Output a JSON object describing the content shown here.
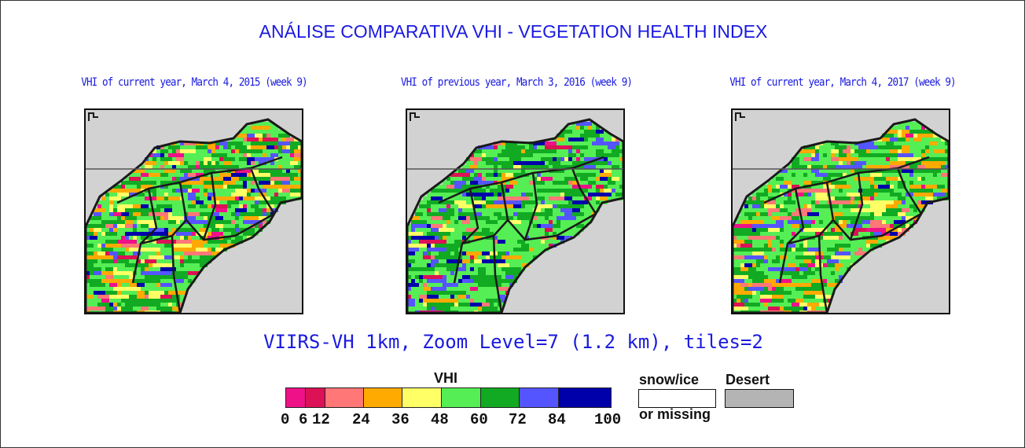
{
  "title": "ANÁLISE COMPARATIVA VHI - VEGETATION HEALTH INDEX",
  "maps": [
    {
      "caption": "VHI of current year, March 4, 2015 (week 9)",
      "icon": "vhi-map-2015"
    },
    {
      "caption": "VHI of previous year, March 3, 2016 (week 9)",
      "icon": "vhi-map-2016"
    },
    {
      "caption": "VHI of current year, March 4, 2017 (week 9)",
      "icon": "vhi-map-2017"
    }
  ],
  "subtitle": "VIIRS-VH 1km, Zoom Level=7 (1.2 km), tiles=2",
  "legend": {
    "title": "VHI",
    "ticks": [
      "0",
      "6",
      "12",
      "24",
      "36",
      "48",
      "60",
      "72",
      "84",
      "100"
    ],
    "colors": [
      "#ee1188",
      "#dd1155",
      "#ff7777",
      "#ffaa00",
      "#ffff66",
      "#55ee55",
      "#11aa22",
      "#5555ff",
      "#0000aa"
    ],
    "snow_label": "snow/ice",
    "missing_label": "or missing",
    "desert_label": "Desert",
    "snow_color": "#ffffff",
    "desert_color": "#b4b4b4"
  },
  "colors": {
    "title_blue": "#1a1ae0",
    "background_gray": "#d2d2d2"
  }
}
